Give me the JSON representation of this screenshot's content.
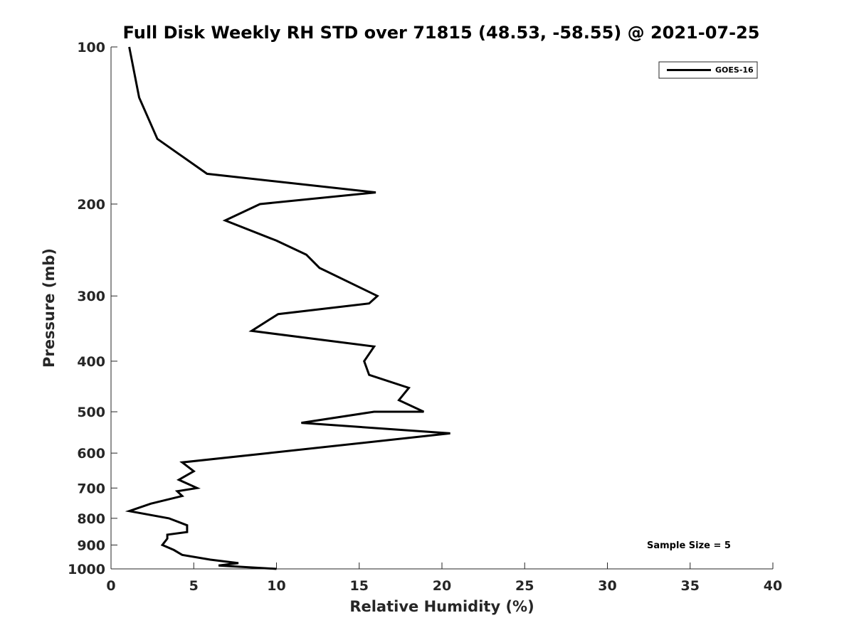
{
  "chart_data": {
    "type": "line",
    "title": "Full Disk Weekly RH STD over 71815 (48.53, -58.55) @ 2021-07-25",
    "xlabel": "Relative Humidity (%)",
    "ylabel": "Pressure (mb)",
    "xlim": [
      0,
      40
    ],
    "ylim": [
      1000,
      100
    ],
    "yscale": "log",
    "xticks": [
      0,
      5,
      10,
      15,
      20,
      25,
      30,
      35,
      40
    ],
    "yticks": [
      100,
      200,
      300,
      400,
      500,
      600,
      700,
      800,
      900,
      1000
    ],
    "grid": false,
    "legend_position": "top-right",
    "series": [
      {
        "name": "GOES-16",
        "color": "#000000",
        "points": [
          [
            1.1,
            100
          ],
          [
            1.7,
            125
          ],
          [
            2.8,
            150
          ],
          [
            5.8,
            175
          ],
          [
            16.0,
            190
          ],
          [
            9.0,
            200
          ],
          [
            6.9,
            215
          ],
          [
            10.0,
            235
          ],
          [
            11.8,
            250
          ],
          [
            12.6,
            265
          ],
          [
            16.1,
            300
          ],
          [
            15.6,
            310
          ],
          [
            10.1,
            325
          ],
          [
            8.5,
            350
          ],
          [
            15.9,
            375
          ],
          [
            15.3,
            400
          ],
          [
            15.6,
            425
          ],
          [
            18.0,
            450
          ],
          [
            17.4,
            475
          ],
          [
            18.9,
            500
          ],
          [
            15.9,
            500
          ],
          [
            11.5,
            525
          ],
          [
            20.5,
            550
          ],
          [
            9.5,
            600
          ],
          [
            4.3,
            625
          ],
          [
            5.0,
            650
          ],
          [
            4.1,
            675
          ],
          [
            5.2,
            700
          ],
          [
            4.0,
            710
          ],
          [
            4.3,
            725
          ],
          [
            2.4,
            750
          ],
          [
            1.1,
            775
          ],
          [
            3.5,
            800
          ],
          [
            4.6,
            825
          ],
          [
            4.6,
            850
          ],
          [
            3.4,
            860
          ],
          [
            3.4,
            875
          ],
          [
            3.1,
            900
          ],
          [
            3.8,
            920
          ],
          [
            4.3,
            940
          ],
          [
            6.0,
            960
          ],
          [
            7.7,
            975
          ],
          [
            6.5,
            985
          ],
          [
            10.0,
            1000
          ]
        ]
      }
    ],
    "annotations": [
      "Sample Size = 5"
    ]
  }
}
